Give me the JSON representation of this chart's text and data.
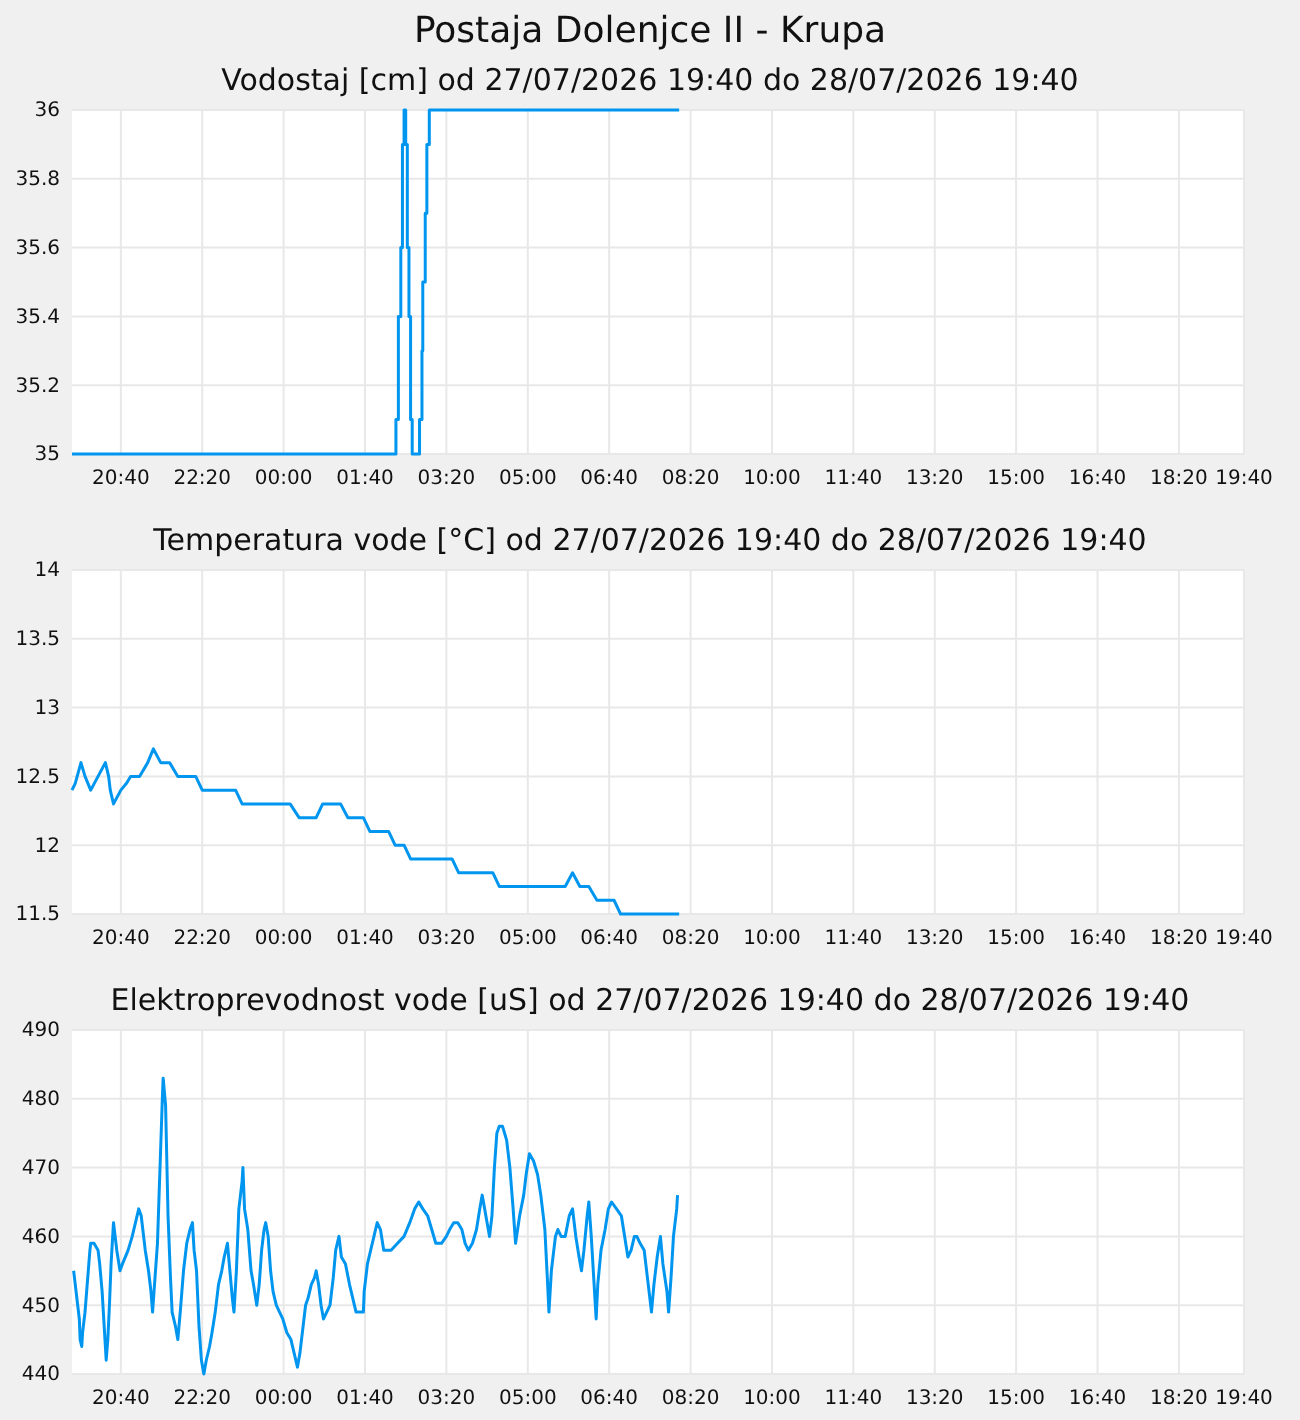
{
  "chart_data": [
    {
      "type": "step",
      "title": "Postaja Dolenjce II - Krupa",
      "subtitle": "Vodostaj [cm] od 27/07/2026 19:40 do 28/07/2026 19:40",
      "grid": true,
      "xlim": [
        "2026-07-27T19:40",
        "2026-07-28T19:40"
      ],
      "xticks": [
        {
          "value": "2026-07-27T20:40",
          "label": "20:40"
        },
        {
          "value": "2026-07-27T22:20",
          "label": "22:20"
        },
        {
          "value": "2026-07-28T00:00",
          "label": "00:00"
        },
        {
          "value": "2026-07-28T01:40",
          "label": "01:40"
        },
        {
          "value": "2026-07-28T03:20",
          "label": "03:20"
        },
        {
          "value": "2026-07-28T05:00",
          "label": "05:00"
        },
        {
          "value": "2026-07-28T06:40",
          "label": "06:40"
        },
        {
          "value": "2026-07-28T08:20",
          "label": "08:20"
        },
        {
          "value": "2026-07-28T10:00",
          "label": "10:00"
        },
        {
          "value": "2026-07-28T11:40",
          "label": "11:40"
        },
        {
          "value": "2026-07-28T13:20",
          "label": "13:20"
        },
        {
          "value": "2026-07-28T15:00",
          "label": "15:00"
        },
        {
          "value": "2026-07-28T16:40",
          "label": "16:40"
        },
        {
          "value": "2026-07-28T18:20",
          "label": "18:20"
        },
        {
          "value": "2026-07-28T19:40",
          "label": "19:40"
        }
      ],
      "ylim": [
        35,
        36
      ],
      "yticks": [
        35,
        35.2,
        35.4,
        35.6,
        35.8,
        36
      ],
      "series": [
        {
          "color": "#0096f0",
          "x": [
            "2026-07-27T19:40",
            "2026-07-28T02:18",
            "2026-07-28T02:21",
            "2026-07-28T02:24",
            "2026-07-28T02:26",
            "2026-07-28T02:28",
            "2026-07-28T02:30",
            "2026-07-28T02:32",
            "2026-07-28T02:34",
            "2026-07-28T02:36",
            "2026-07-28T02:38",
            "2026-07-28T02:47",
            "2026-07-28T02:50",
            "2026-07-28T02:51",
            "2026-07-28T02:54",
            "2026-07-28T02:56",
            "2026-07-28T02:59",
            "2026-07-28T08:06"
          ],
          "values": [
            35,
            35.1,
            35.4,
            35.6,
            35.9,
            36,
            35.9,
            35.6,
            35.4,
            35.1,
            35,
            35.1,
            35.3,
            35.5,
            35.7,
            35.9,
            36,
            36
          ]
        }
      ]
    },
    {
      "type": "line",
      "title": "Temperatura vode [°C] od 27/07/2026 19:40 do 28/07/2026 19:40",
      "grid": true,
      "xlim": [
        "2026-07-27T19:40",
        "2026-07-28T19:40"
      ],
      "xticks": [
        {
          "value": "2026-07-27T20:40",
          "label": "20:40"
        },
        {
          "value": "2026-07-27T22:20",
          "label": "22:20"
        },
        {
          "value": "2026-07-28T00:00",
          "label": "00:00"
        },
        {
          "value": "2026-07-28T01:40",
          "label": "01:40"
        },
        {
          "value": "2026-07-28T03:20",
          "label": "03:20"
        },
        {
          "value": "2026-07-28T05:00",
          "label": "05:00"
        },
        {
          "value": "2026-07-28T06:40",
          "label": "06:40"
        },
        {
          "value": "2026-07-28T08:20",
          "label": "08:20"
        },
        {
          "value": "2026-07-28T10:00",
          "label": "10:00"
        },
        {
          "value": "2026-07-28T11:40",
          "label": "11:40"
        },
        {
          "value": "2026-07-28T13:20",
          "label": "13:20"
        },
        {
          "value": "2026-07-28T15:00",
          "label": "15:00"
        },
        {
          "value": "2026-07-28T16:40",
          "label": "16:40"
        },
        {
          "value": "2026-07-28T18:20",
          "label": "18:20"
        },
        {
          "value": "2026-07-28T19:40",
          "label": "19:40"
        }
      ],
      "ylim": [
        11.5,
        14
      ],
      "yticks": [
        11.5,
        12,
        12.5,
        13,
        13.5,
        14
      ],
      "series": [
        {
          "color": "#0096f0",
          "x": [
            "2026-07-27T19:40",
            "2026-07-27T19:44",
            "2026-07-27T19:51",
            "2026-07-27T19:56",
            "2026-07-27T20:03",
            "2026-07-27T20:12",
            "2026-07-27T20:21",
            "2026-07-27T20:25",
            "2026-07-27T20:27",
            "2026-07-27T20:31",
            "2026-07-27T20:40",
            "2026-07-27T20:47",
            "2026-07-27T20:52",
            "2026-07-27T21:03",
            "2026-07-27T21:13",
            "2026-07-27T21:20",
            "2026-07-27T21:29",
            "2026-07-27T21:40",
            "2026-07-27T21:50",
            "2026-07-27T22:12",
            "2026-07-27T22:20",
            "2026-07-27T23:01",
            "2026-07-27T23:09",
            "2026-07-28T00:08",
            "2026-07-28T00:19",
            "2026-07-28T00:40",
            "2026-07-28T00:48",
            "2026-07-28T01:10",
            "2026-07-28T01:19",
            "2026-07-28T01:38",
            "2026-07-28T01:46",
            "2026-07-28T02:09",
            "2026-07-28T02:17",
            "2026-07-28T02:28",
            "2026-07-28T02:36",
            "2026-07-28T03:27",
            "2026-07-28T03:35",
            "2026-07-28T04:17",
            "2026-07-28T04:25",
            "2026-07-28T05:46",
            "2026-07-28T05:55",
            "2026-07-28T06:04",
            "2026-07-28T06:15",
            "2026-07-28T06:25",
            "2026-07-28T06:46",
            "2026-07-28T06:54",
            "2026-07-28T08:06"
          ],
          "values": [
            12.4,
            12.45,
            12.6,
            12.5,
            12.4,
            12.5,
            12.6,
            12.5,
            12.4,
            12.3,
            12.4,
            12.45,
            12.5,
            12.5,
            12.6,
            12.7,
            12.6,
            12.6,
            12.5,
            12.5,
            12.4,
            12.4,
            12.3,
            12.3,
            12.2,
            12.2,
            12.3,
            12.3,
            12.2,
            12.2,
            12.1,
            12.1,
            12.0,
            12.0,
            11.9,
            11.9,
            11.8,
            11.8,
            11.7,
            11.7,
            11.8,
            11.7,
            11.7,
            11.6,
            11.6,
            11.5,
            11.5
          ]
        }
      ]
    },
    {
      "type": "line",
      "title": "Elektroprevodnost vode [uS] od 27/07/2026 19:40 do 28/07/2026 19:40",
      "grid": true,
      "xlim": [
        "2026-07-27T19:40",
        "2026-07-28T19:40"
      ],
      "xticks": [
        {
          "value": "2026-07-27T20:40",
          "label": "20:40"
        },
        {
          "value": "2026-07-27T22:20",
          "label": "22:20"
        },
        {
          "value": "2026-07-28T00:00",
          "label": "00:00"
        },
        {
          "value": "2026-07-28T01:40",
          "label": "01:40"
        },
        {
          "value": "2026-07-28T03:20",
          "label": "03:20"
        },
        {
          "value": "2026-07-28T05:00",
          "label": "05:00"
        },
        {
          "value": "2026-07-28T06:40",
          "label": "06:40"
        },
        {
          "value": "2026-07-28T08:20",
          "label": "08:20"
        },
        {
          "value": "2026-07-28T10:00",
          "label": "10:00"
        },
        {
          "value": "2026-07-28T11:40",
          "label": "11:40"
        },
        {
          "value": "2026-07-28T13:20",
          "label": "13:20"
        },
        {
          "value": "2026-07-28T15:00",
          "label": "15:00"
        },
        {
          "value": "2026-07-28T16:40",
          "label": "16:40"
        },
        {
          "value": "2026-07-28T18:20",
          "label": "18:20"
        },
        {
          "value": "2026-07-28T19:40",
          "label": "19:40"
        }
      ],
      "ylim": [
        440,
        490
      ],
      "yticks": [
        440,
        450,
        460,
        470,
        480,
        490
      ],
      "series": [
        {
          "color": "#0096f0",
          "x": [
            "2026-07-27T19:42",
            "2026-07-27T19:43",
            "2026-07-27T19:46",
            "2026-07-27T19:49",
            "2026-07-27T19:50",
            "2026-07-27T19:52",
            "2026-07-27T19:53",
            "2026-07-27T19:56",
            "2026-07-27T19:58",
            "2026-07-27T20:00",
            "2026-07-27T20:02",
            "2026-07-27T20:03",
            "2026-07-27T20:07",
            "2026-07-27T20:12",
            "2026-07-27T20:14",
            "2026-07-27T20:17",
            "2026-07-27T20:19",
            "2026-07-27T20:21",
            "2026-07-27T20:22",
            "2026-07-27T20:24",
            "2026-07-27T20:26",
            "2026-07-27T20:28",
            "2026-07-27T20:31",
            "2026-07-27T20:32",
            "2026-07-27T20:35",
            "2026-07-27T20:39",
            "2026-07-27T20:42",
            "2026-07-27T20:49",
            "2026-07-27T20:54",
            "2026-07-27T20:58",
            "2026-07-27T21:02",
            "2026-07-27T21:05",
            "2026-07-27T21:10",
            "2026-07-27T21:14",
            "2026-07-27T21:17",
            "2026-07-27T21:19",
            "2026-07-27T21:22",
            "2026-07-27T21:25",
            "2026-07-27T21:27",
            "2026-07-27T21:29",
            "2026-07-27T21:31",
            "2026-07-27T21:32",
            "2026-07-27T21:35",
            "2026-07-27T21:38",
            "2026-07-27T21:41",
            "2026-07-27T21:43",
            "2026-07-27T21:47",
            "2026-07-27T21:50",
            "2026-07-27T21:53",
            "2026-07-27T21:57",
            "2026-07-27T22:01",
            "2026-07-27T22:05",
            "2026-07-27T22:08",
            "2026-07-27T22:10",
            "2026-07-27T22:13",
            "2026-07-27T22:16",
            "2026-07-27T22:19",
            "2026-07-27T22:22",
            "2026-07-27T22:25",
            "2026-07-27T22:29",
            "2026-07-27T22:32",
            "2026-07-27T22:36",
            "2026-07-27T22:40",
            "2026-07-27T22:44",
            "2026-07-27T22:47",
            "2026-07-27T22:51",
            "2026-07-27T22:54",
            "2026-07-27T22:57",
            "2026-07-27T22:59",
            "2026-07-27T23:02",
            "2026-07-27T23:05",
            "2026-07-27T23:09",
            "2026-07-27T23:10",
            "2026-07-27T23:12",
            "2026-07-27T23:16",
            "2026-07-27T23:20",
            "2026-07-27T23:23",
            "2026-07-27T23:27",
            "2026-07-27T23:30",
            "2026-07-27T23:33",
            "2026-07-27T23:36",
            "2026-07-27T23:38",
            "2026-07-27T23:41",
            "2026-07-27T23:44",
            "2026-07-27T23:47",
            "2026-07-27T23:51",
            "2026-07-27T23:55",
            "2026-07-27T23:59",
            "2026-07-28T00:04",
            "2026-07-28T00:09",
            "2026-07-28T00:13",
            "2026-07-28T00:17",
            "2026-07-28T00:20",
            "2026-07-28T00:24",
            "2026-07-28T00:27",
            "2026-07-28T00:30",
            "2026-07-28T00:34",
            "2026-07-28T00:38",
            "2026-07-28T00:40",
            "2026-07-28T00:43",
            "2026-07-28T00:46",
            "2026-07-28T00:49",
            "2026-07-28T00:53",
            "2026-07-28T00:57",
            "2026-07-28T01:01",
            "2026-07-28T01:04",
            "2026-07-28T01:08",
            "2026-07-28T01:11",
            "2026-07-28T01:16",
            "2026-07-28T01:21",
            "2026-07-28T01:25",
            "2026-07-28T01:29",
            "2026-07-28T01:38",
            "2026-07-28T01:39",
            "2026-07-28T01:43",
            "2026-07-28T01:47",
            "2026-07-28T01:51",
            "2026-07-28T01:55",
            "2026-07-28T01:59",
            "2026-07-28T02:03",
            "2026-07-28T02:12",
            "2026-07-28T02:20",
            "2026-07-28T02:28",
            "2026-07-28T02:35",
            "2026-07-28T02:41",
            "2026-07-28T02:46",
            "2026-07-28T02:51",
            "2026-07-28T02:57",
            "2026-07-28T03:02",
            "2026-07-28T03:07",
            "2026-07-28T03:14",
            "2026-07-28T03:20",
            "2026-07-28T03:24",
            "2026-07-28T03:29",
            "2026-07-28T03:34",
            "2026-07-28T03:39",
            "2026-07-28T03:43",
            "2026-07-28T03:47",
            "2026-07-28T03:52",
            "2026-07-28T03:57",
            "2026-07-28T04:01",
            "2026-07-28T04:04",
            "2026-07-28T04:07",
            "2026-07-28T04:10",
            "2026-07-28T04:13",
            "2026-07-28T04:16",
            "2026-07-28T04:19",
            "2026-07-28T04:22",
            "2026-07-28T04:25",
            "2026-07-28T04:29",
            "2026-07-28T04:34",
            "2026-07-28T04:38",
            "2026-07-28T04:42",
            "2026-07-28T04:45",
            "2026-07-28T04:50",
            "2026-07-28T04:55",
            "2026-07-28T04:58",
            "2026-07-28T05:02",
            "2026-07-28T05:07",
            "2026-07-28T05:12",
            "2026-07-28T05:16",
            "2026-07-28T05:21",
            "2026-07-28T05:24",
            "2026-07-28T05:26",
            "2026-07-28T05:29",
            "2026-07-28T05:34",
            "2026-07-28T05:37",
            "2026-07-28T05:41",
            "2026-07-28T05:46",
            "2026-07-28T05:51",
            "2026-07-28T05:55",
            "2026-07-28T05:59",
            "2026-07-28T06:03",
            "2026-07-28T06:06",
            "2026-07-28T06:09",
            "2026-07-28T06:13",
            "2026-07-28T06:15",
            "2026-07-28T06:18",
            "2026-07-28T06:21",
            "2026-07-28T06:24",
            "2026-07-28T06:26",
            "2026-07-28T06:30",
            "2026-07-28T06:35",
            "2026-07-28T06:39",
            "2026-07-28T06:43",
            "2026-07-28T06:49",
            "2026-07-28T06:55",
            "2026-07-28T06:59",
            "2026-07-28T07:03",
            "2026-07-28T07:07",
            "2026-07-28T07:11",
            "2026-07-28T07:14",
            "2026-07-28T07:18",
            "2026-07-28T07:23",
            "2026-07-28T07:27",
            "2026-07-28T07:32",
            "2026-07-28T07:35",
            "2026-07-28T07:39",
            "2026-07-28T07:43",
            "2026-07-28T07:46",
            "2026-07-28T07:51",
            "2026-07-28T07:53",
            "2026-07-28T07:56",
            "2026-07-28T07:59",
            "2026-07-28T08:03",
            "2026-07-28T08:04"
          ],
          "values": [
            455,
            454,
            451,
            448,
            445,
            444,
            446,
            449,
            452,
            455,
            458,
            459,
            459,
            458,
            456,
            452,
            448,
            444,
            442,
            445,
            450,
            456,
            462,
            461,
            458,
            455,
            456,
            458,
            460,
            462,
            464,
            463,
            458,
            455,
            452,
            449,
            454,
            459,
            466,
            473,
            480,
            483,
            479,
            463,
            454,
            449,
            447,
            445,
            449,
            455,
            459,
            461,
            462,
            458,
            455,
            447,
            442,
            440,
            442,
            444,
            446,
            449,
            453,
            455,
            457,
            459,
            455,
            451,
            449,
            455,
            464,
            468,
            470,
            464,
            461,
            455,
            453,
            450,
            453,
            458,
            461,
            462,
            460,
            455,
            452,
            450,
            449,
            448,
            446,
            445,
            443,
            441,
            443,
            447,
            450,
            451,
            453,
            454,
            455,
            453,
            450,
            448,
            449,
            450,
            454,
            458,
            460,
            457,
            456,
            453,
            451,
            449,
            449,
            452,
            456,
            458,
            460,
            462,
            461,
            458,
            458,
            459,
            460,
            462,
            464,
            465,
            464,
            463,
            461,
            459,
            459,
            460,
            461,
            462,
            462,
            461,
            459,
            458,
            459,
            461,
            464,
            466,
            464,
            462,
            460,
            463,
            470,
            475,
            476,
            476,
            474,
            470,
            464,
            459,
            463,
            466,
            469,
            472,
            471,
            469,
            466,
            461,
            454,
            449,
            455,
            460,
            461,
            460,
            460,
            463,
            464,
            460,
            457,
            455,
            458,
            463,
            465,
            460,
            454,
            448,
            453,
            458,
            461,
            464,
            465,
            464,
            463,
            460,
            457,
            458,
            460,
            460,
            459,
            458,
            454,
            449,
            453,
            457,
            460,
            456,
            452,
            449,
            454,
            460,
            464,
            466
          ]
        }
      ]
    }
  ]
}
